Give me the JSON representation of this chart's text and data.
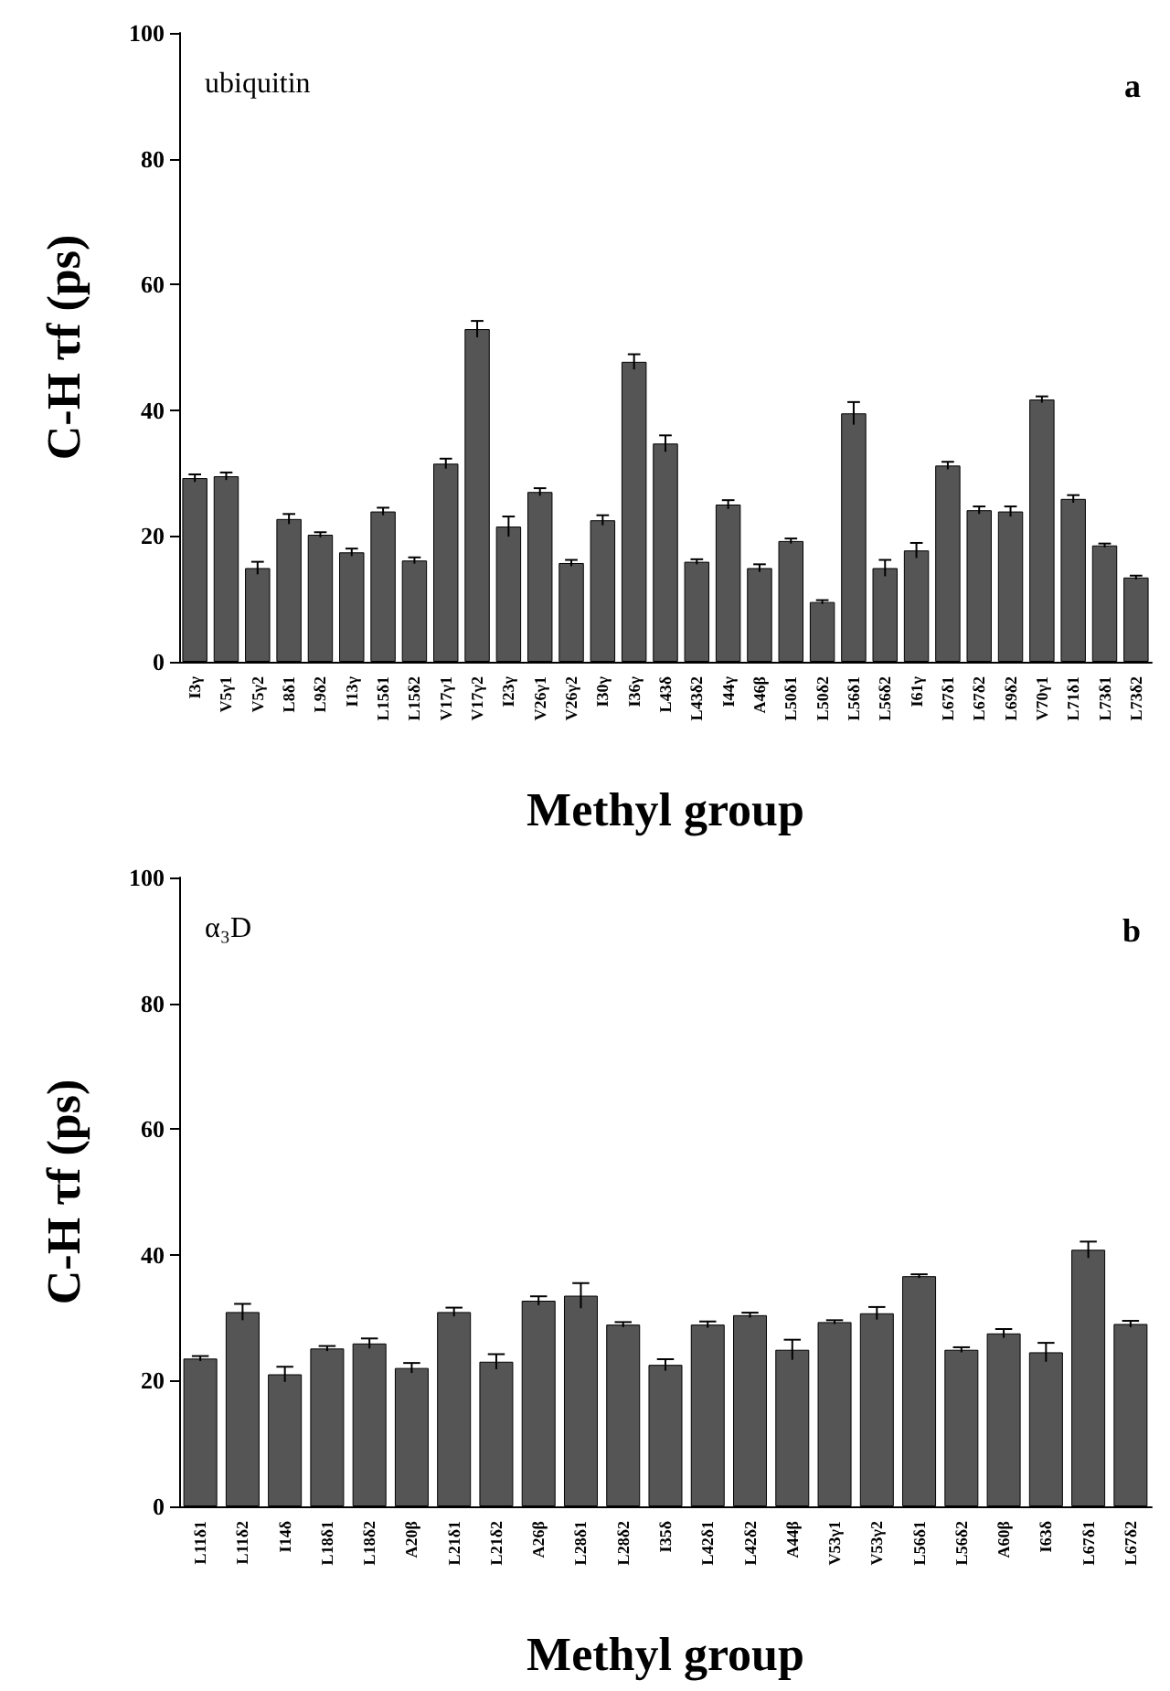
{
  "chart_data": [
    {
      "type": "bar",
      "xlabel": "Methyl group",
      "ylabel": "C-H τf (ps)",
      "annotations": [
        "ubiquitin",
        "a"
      ],
      "categories": [
        "I3γ",
        "V5γ1",
        "V5γ2",
        "L8δ1",
        "L9δ2",
        "I13γ",
        "L15δ1",
        "L15δ2",
        "V17γ1",
        "V17γ2",
        "I23γ",
        "V26γ1",
        "V26γ2",
        "I30γ",
        "I36γ",
        "L43δ",
        "L43δ2",
        "I44γ",
        "A46β",
        "L50δ1",
        "L50δ2",
        "L56δ1",
        "L56δ2",
        "I61γ",
        "L67δ1",
        "L67δ2",
        "L69δ2",
        "V70γ1",
        "L71δ1",
        "L73δ1",
        "L73δ2"
      ],
      "series": [
        {
          "color": "#555555",
          "values": [
            29.2,
            29.5,
            14.9,
            22.7,
            20.2,
            17.4,
            23.9,
            16.1,
            31.5,
            52.9,
            21.5,
            27,
            15.7,
            22.5,
            47.7,
            34.7,
            15.9,
            25,
            14.9,
            19.2,
            9.5,
            39.5,
            14.9,
            17.7,
            31.2,
            24.1,
            23.9,
            41.7,
            25.9,
            18.5,
            13.4
          ],
          "errors": [
            0.6,
            0.6,
            1.0,
            0.8,
            0.4,
            0.6,
            0.6,
            0.5,
            0.8,
            1.3,
            1.6,
            0.6,
            0.5,
            0.8,
            1.2,
            1.3,
            0.4,
            0.7,
            0.6,
            0.4,
            0.3,
            1.8,
            1.3,
            1.2,
            0.6,
            0.6,
            0.8,
            0.5,
            0.6,
            0.3,
            0.3
          ]
        }
      ],
      "ylim": [
        0,
        100
      ],
      "yticks": [
        0,
        20,
        40,
        60,
        80,
        100
      ]
    },
    {
      "type": "bar",
      "xlabel": "Methyl group",
      "ylabel": "C-H τf (ps)",
      "annotations": [
        "α₃D",
        "b"
      ],
      "categories": [
        "L11δ1",
        "L11δ2",
        "I14δ",
        "L18δ1",
        "L18δ2",
        "A20β",
        "L21δ1",
        "L21δ2",
        "A26β",
        "L28δ1",
        "L28δ2",
        "I35δ",
        "L42δ1",
        "L42δ2",
        "A44β",
        "V53γ1",
        "V53γ2",
        "L56δ1",
        "L56δ2",
        "A60β",
        "I63δ",
        "L67δ1",
        "L67δ2"
      ],
      "series": [
        {
          "color": "#555555",
          "values": [
            23.5,
            30.9,
            21,
            25.1,
            25.9,
            22,
            30.9,
            23,
            32.7,
            33.5,
            28.9,
            22.5,
            28.9,
            30.4,
            24.9,
            29.3,
            30.7,
            36.6,
            24.9,
            27.5,
            24.5,
            40.8,
            29
          ],
          "errors": [
            0.4,
            1.3,
            1.2,
            0.4,
            0.8,
            0.8,
            0.7,
            1.2,
            0.7,
            2.0,
            0.4,
            0.9,
            0.5,
            0.4,
            1.6,
            0.3,
            1.0,
            0.3,
            0.4,
            0.7,
            1.5,
            1.3,
            0.5
          ]
        }
      ],
      "ylim": [
        0,
        100
      ],
      "yticks": [
        0,
        20,
        40,
        60,
        80,
        100
      ]
    }
  ]
}
